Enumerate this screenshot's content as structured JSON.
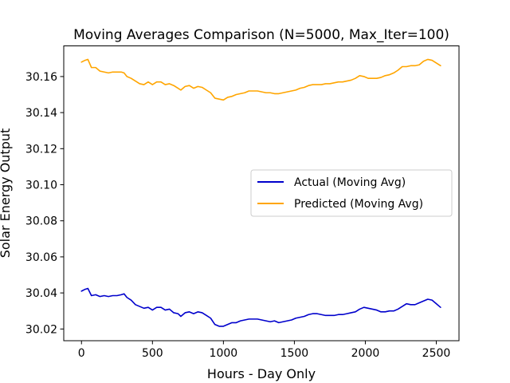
{
  "chart_data": {
    "type": "line",
    "title": "Moving Averages Comparison (N=5000, Max_Iter=100)",
    "xlabel": "Hours - Day Only",
    "ylabel": "Solar Energy Output",
    "xlim": [
      -125,
      2660
    ],
    "ylim": [
      30.0135,
      30.177
    ],
    "xticks": [
      0,
      500,
      1000,
      1500,
      2000,
      2500
    ],
    "yticks": [
      30.02,
      30.04,
      30.06,
      30.08,
      30.1,
      30.12,
      30.14,
      30.16
    ],
    "grid": false,
    "legend_position": "center-right",
    "series": [
      {
        "name": "Actual (Moving Avg)",
        "color": "#0000cc",
        "x": [
          0,
          25,
          45,
          70,
          100,
          130,
          160,
          190,
          220,
          250,
          280,
          300,
          320,
          350,
          380,
          410,
          440,
          470,
          500,
          530,
          560,
          590,
          620,
          650,
          680,
          700,
          730,
          760,
          790,
          820,
          850,
          880,
          910,
          940,
          970,
          1000,
          1030,
          1060,
          1090,
          1120,
          1150,
          1180,
          1210,
          1240,
          1270,
          1300,
          1330,
          1360,
          1390,
          1420,
          1450,
          1480,
          1510,
          1540,
          1570,
          1600,
          1630,
          1660,
          1690,
          1720,
          1750,
          1780,
          1810,
          1840,
          1870,
          1900,
          1930,
          1960,
          1990,
          2020,
          2050,
          2080,
          2110,
          2140,
          2170,
          2200,
          2230,
          2260,
          2290,
          2320,
          2350,
          2380,
          2410,
          2440,
          2470,
          2500,
          2530
        ],
        "y": [
          30.041,
          30.042,
          30.0425,
          30.0385,
          30.039,
          30.038,
          30.0385,
          30.038,
          30.0385,
          30.0385,
          30.039,
          30.0395,
          30.0375,
          30.036,
          30.0335,
          30.0325,
          30.0315,
          30.032,
          30.0305,
          30.032,
          30.032,
          30.0305,
          30.031,
          30.029,
          30.0285,
          30.027,
          30.029,
          30.0295,
          30.0285,
          30.0295,
          30.029,
          30.0275,
          30.026,
          30.0225,
          30.0215,
          30.0215,
          30.0225,
          30.0235,
          30.0235,
          30.0245,
          30.025,
          30.0255,
          30.0255,
          30.0255,
          30.025,
          30.0245,
          30.024,
          30.0245,
          30.0235,
          30.024,
          30.0245,
          30.025,
          30.026,
          30.0265,
          30.027,
          30.028,
          30.0285,
          30.0285,
          30.028,
          30.0275,
          30.0275,
          30.0275,
          30.028,
          30.028,
          30.0285,
          30.029,
          30.0295,
          30.031,
          30.032,
          30.0315,
          30.031,
          30.0305,
          30.0295,
          30.0295,
          30.03,
          30.03,
          30.031,
          30.0325,
          30.034,
          30.0335,
          30.0335,
          30.0345,
          30.0355,
          30.0365,
          30.036,
          30.034,
          30.032
        ]
      },
      {
        "name": "Predicted (Moving Avg)",
        "color": "#ffa500",
        "x": [
          0,
          25,
          45,
          70,
          100,
          130,
          160,
          190,
          220,
          250,
          280,
          300,
          320,
          350,
          380,
          410,
          440,
          470,
          500,
          530,
          560,
          590,
          620,
          650,
          680,
          700,
          730,
          760,
          790,
          820,
          850,
          880,
          910,
          940,
          970,
          1000,
          1030,
          1060,
          1090,
          1120,
          1150,
          1180,
          1210,
          1240,
          1270,
          1300,
          1330,
          1360,
          1390,
          1420,
          1450,
          1480,
          1510,
          1540,
          1570,
          1600,
          1630,
          1660,
          1690,
          1720,
          1750,
          1780,
          1810,
          1840,
          1870,
          1900,
          1930,
          1960,
          1990,
          2020,
          2050,
          2080,
          2110,
          2140,
          2170,
          2200,
          2230,
          2260,
          2290,
          2320,
          2350,
          2380,
          2410,
          2440,
          2470,
          2500,
          2530
        ],
        "y": [
          30.168,
          30.169,
          30.1695,
          30.165,
          30.165,
          30.163,
          30.1625,
          30.162,
          30.1625,
          30.1625,
          30.1625,
          30.162,
          30.16,
          30.159,
          30.1575,
          30.156,
          30.1555,
          30.157,
          30.1555,
          30.157,
          30.157,
          30.1555,
          30.156,
          30.155,
          30.1535,
          30.1525,
          30.1545,
          30.155,
          30.1535,
          30.1545,
          30.154,
          30.1525,
          30.151,
          30.148,
          30.1475,
          30.147,
          30.1485,
          30.149,
          30.15,
          30.1505,
          30.151,
          30.152,
          30.152,
          30.152,
          30.1515,
          30.151,
          30.151,
          30.1505,
          30.1505,
          30.151,
          30.1515,
          30.152,
          30.1525,
          30.1535,
          30.154,
          30.155,
          30.1555,
          30.1555,
          30.1555,
          30.156,
          30.156,
          30.1565,
          30.157,
          30.157,
          30.1575,
          30.158,
          30.159,
          30.1605,
          30.16,
          30.159,
          30.159,
          30.159,
          30.1595,
          30.1605,
          30.161,
          30.162,
          30.1635,
          30.1655,
          30.1655,
          30.166,
          30.166,
          30.1665,
          30.1685,
          30.1695,
          30.169,
          30.1675,
          30.166
        ]
      }
    ]
  }
}
